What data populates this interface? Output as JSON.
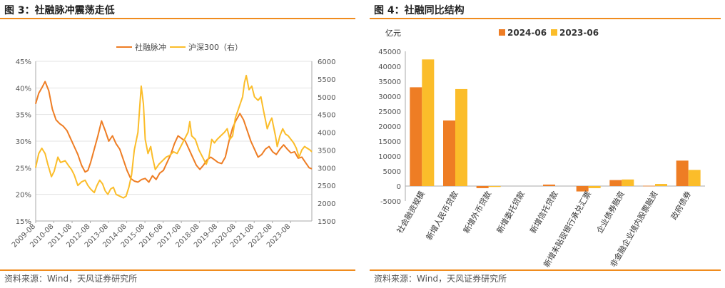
{
  "colors": {
    "accent": "#f08c1e",
    "series_dark": "#ee7d24",
    "series_light": "#fbbd2a",
    "grid": "#e3e3e3",
    "axis": "#aaaaaa"
  },
  "left": {
    "title": "图 3：社融脉冲震荡走低",
    "source": "资料来源：Wind，天风证券研究所"
  },
  "right": {
    "title": "图 4：社融同比结构",
    "source": "资料来源：Wind，天风证券研究所"
  },
  "chart_data": [
    {
      "type": "line",
      "title": "社融脉冲震荡走低",
      "legend": [
        "社融脉冲",
        "沪深300（右）"
      ],
      "legend_position": "top",
      "y_left": {
        "ticks": [
          "15%",
          "20%",
          "25%",
          "30%",
          "35%",
          "40%",
          "45%"
        ],
        "lim": [
          15,
          45
        ]
      },
      "y_right": {
        "ticks": [
          "1500",
          "2000",
          "2500",
          "3000",
          "3500",
          "4000",
          "4500",
          "5000",
          "5500",
          "6000"
        ],
        "lim": [
          1500,
          6000
        ]
      },
      "x_ticks": [
        "2009-08",
        "2010-08",
        "2011-08",
        "2012-08",
        "2013-08",
        "2014-08",
        "2015-08",
        "2016-08",
        "2017-08",
        "2018-08",
        "2019-08",
        "2020-08",
        "2021-08",
        "2022-08",
        "2023-08"
      ],
      "x_range": [
        2009.583,
        2024.75
      ],
      "series": [
        {
          "name": "社融脉冲",
          "axis": "left",
          "points": [
            [
              2009.58,
              37.0
            ],
            [
              2009.75,
              39.0
            ],
            [
              2009.92,
              40.0
            ],
            [
              2010.1,
              41.2
            ],
            [
              2010.3,
              39.5
            ],
            [
              2010.5,
              36.0
            ],
            [
              2010.7,
              34.0
            ],
            [
              2010.9,
              33.3
            ],
            [
              2011.1,
              32.8
            ],
            [
              2011.3,
              32.0
            ],
            [
              2011.5,
              30.5
            ],
            [
              2011.7,
              29.0
            ],
            [
              2011.9,
              27.5
            ],
            [
              2012.1,
              25.5
            ],
            [
              2012.3,
              24.2
            ],
            [
              2012.45,
              24.5
            ],
            [
              2012.6,
              26.0
            ],
            [
              2012.8,
              28.5
            ],
            [
              2013.0,
              31.0
            ],
            [
              2013.2,
              33.8
            ],
            [
              2013.4,
              32.0
            ],
            [
              2013.6,
              30.0
            ],
            [
              2013.8,
              31.0
            ],
            [
              2014.0,
              29.5
            ],
            [
              2014.2,
              28.5
            ],
            [
              2014.4,
              26.5
            ],
            [
              2014.6,
              24.5
            ],
            [
              2014.8,
              23.0
            ],
            [
              2015.0,
              22.5
            ],
            [
              2015.2,
              22.3
            ],
            [
              2015.4,
              22.8
            ],
            [
              2015.6,
              23.0
            ],
            [
              2015.8,
              22.3
            ],
            [
              2016.0,
              23.5
            ],
            [
              2016.2,
              22.8
            ],
            [
              2016.4,
              24.0
            ],
            [
              2016.6,
              24.5
            ],
            [
              2016.8,
              26.0
            ],
            [
              2017.0,
              27.5
            ],
            [
              2017.2,
              29.5
            ],
            [
              2017.4,
              31.0
            ],
            [
              2017.6,
              30.5
            ],
            [
              2017.8,
              30.0
            ],
            [
              2018.0,
              28.5
            ],
            [
              2018.2,
              27.0
            ],
            [
              2018.4,
              25.5
            ],
            [
              2018.6,
              24.7
            ],
            [
              2018.8,
              25.5
            ],
            [
              2019.0,
              26.5
            ],
            [
              2019.2,
              27.0
            ],
            [
              2019.4,
              26.5
            ],
            [
              2019.6,
              26.0
            ],
            [
              2019.8,
              25.8
            ],
            [
              2020.0,
              27.0
            ],
            [
              2020.2,
              30.0
            ],
            [
              2020.4,
              32.5
            ],
            [
              2020.6,
              34.0
            ],
            [
              2020.8,
              35.2
            ],
            [
              2021.0,
              34.0
            ],
            [
              2021.2,
              32.0
            ],
            [
              2021.4,
              30.0
            ],
            [
              2021.6,
              28.5
            ],
            [
              2021.8,
              27.0
            ],
            [
              2022.0,
              27.5
            ],
            [
              2022.2,
              28.5
            ],
            [
              2022.4,
              29.0
            ],
            [
              2022.6,
              28.0
            ],
            [
              2022.8,
              27.5
            ],
            [
              2023.0,
              28.5
            ],
            [
              2023.2,
              29.3
            ],
            [
              2023.4,
              28.5
            ],
            [
              2023.6,
              27.8
            ],
            [
              2023.8,
              28.0
            ],
            [
              2024.0,
              26.8
            ],
            [
              2024.2,
              27.0
            ],
            [
              2024.4,
              26.0
            ],
            [
              2024.6,
              25.0
            ],
            [
              2024.75,
              24.8
            ]
          ]
        },
        {
          "name": "沪深300（右）",
          "axis": "right",
          "points": [
            [
              2009.58,
              3000
            ],
            [
              2009.75,
              3400
            ],
            [
              2009.92,
              3550
            ],
            [
              2010.1,
              3400
            ],
            [
              2010.25,
              3100
            ],
            [
              2010.45,
              2750
            ],
            [
              2010.6,
              2900
            ],
            [
              2010.8,
              3300
            ],
            [
              2010.95,
              3150
            ],
            [
              2011.2,
              3200
            ],
            [
              2011.4,
              3050
            ],
            [
              2011.55,
              2950
            ],
            [
              2011.7,
              2800
            ],
            [
              2011.9,
              2500
            ],
            [
              2012.1,
              2600
            ],
            [
              2012.3,
              2650
            ],
            [
              2012.45,
              2500
            ],
            [
              2012.6,
              2400
            ],
            [
              2012.8,
              2300
            ],
            [
              2012.95,
              2500
            ],
            [
              2013.1,
              2650
            ],
            [
              2013.25,
              2550
            ],
            [
              2013.4,
              2350
            ],
            [
              2013.55,
              2250
            ],
            [
              2013.7,
              2400
            ],
            [
              2013.85,
              2450
            ],
            [
              2014.0,
              2250
            ],
            [
              2014.2,
              2200
            ],
            [
              2014.4,
              2150
            ],
            [
              2014.55,
              2200
            ],
            [
              2014.7,
              2450
            ],
            [
              2014.85,
              2800
            ],
            [
              2015.0,
              3500
            ],
            [
              2015.2,
              4000
            ],
            [
              2015.38,
              5300
            ],
            [
              2015.5,
              4800
            ],
            [
              2015.6,
              3800
            ],
            [
              2015.75,
              3400
            ],
            [
              2015.9,
              3600
            ],
            [
              2016.0,
              3300
            ],
            [
              2016.15,
              2950
            ],
            [
              2016.35,
              3100
            ],
            [
              2016.55,
              3200
            ],
            [
              2016.75,
              3300
            ],
            [
              2016.95,
              3350
            ],
            [
              2017.15,
              3450
            ],
            [
              2017.35,
              3400
            ],
            [
              2017.55,
              3600
            ],
            [
              2017.75,
              3800
            ],
            [
              2017.95,
              4000
            ],
            [
              2018.05,
              4300
            ],
            [
              2018.15,
              3900
            ],
            [
              2018.35,
              3800
            ],
            [
              2018.55,
              3500
            ],
            [
              2018.75,
              3300
            ],
            [
              2018.95,
              3100
            ],
            [
              2019.1,
              3300
            ],
            [
              2019.25,
              3800
            ],
            [
              2019.4,
              3700
            ],
            [
              2019.55,
              3800
            ],
            [
              2019.75,
              3900
            ],
            [
              2019.95,
              4000
            ],
            [
              2020.1,
              4100
            ],
            [
              2020.25,
              3800
            ],
            [
              2020.4,
              3900
            ],
            [
              2020.55,
              4400
            ],
            [
              2020.75,
              4700
            ],
            [
              2020.95,
              5000
            ],
            [
              2021.05,
              5400
            ],
            [
              2021.15,
              5600
            ],
            [
              2021.3,
              5200
            ],
            [
              2021.45,
              5300
            ],
            [
              2021.6,
              5000
            ],
            [
              2021.8,
              4900
            ],
            [
              2021.95,
              5000
            ],
            [
              2022.1,
              4600
            ],
            [
              2022.3,
              4100
            ],
            [
              2022.45,
              4300
            ],
            [
              2022.55,
              4400
            ],
            [
              2022.75,
              3900
            ],
            [
              2022.85,
              3600
            ],
            [
              2023.0,
              3900
            ],
            [
              2023.15,
              4100
            ],
            [
              2023.3,
              3950
            ],
            [
              2023.45,
              3900
            ],
            [
              2023.6,
              3800
            ],
            [
              2023.75,
              3700
            ],
            [
              2023.9,
              3550
            ],
            [
              2024.05,
              3300
            ],
            [
              2024.2,
              3500
            ],
            [
              2024.35,
              3600
            ],
            [
              2024.5,
              3550
            ],
            [
              2024.65,
              3500
            ],
            [
              2024.75,
              3450
            ]
          ]
        }
      ]
    },
    {
      "type": "bar",
      "title": "社融同比结构",
      "ylabel": "亿元",
      "legend_position": "top",
      "ylim": [
        -5000,
        45000
      ],
      "y_ticks": [
        "-5000",
        "0",
        "5000",
        "10000",
        "15000",
        "20000",
        "25000",
        "30000",
        "35000",
        "40000",
        "45000"
      ],
      "categories": [
        "社会融资规模",
        "新增人民币贷款",
        "新增外币贷款",
        "新增委托贷款",
        "新增信托贷款",
        "新增未贴现银行承兑汇票",
        "企业债券融资",
        "非金融企业境内股票融资",
        "政府债券"
      ],
      "series": [
        {
          "name": "2024-06",
          "values": [
            33000,
            21900,
            -700,
            0,
            500,
            -1800,
            2000,
            100,
            8500
          ]
        },
        {
          "name": "2023-06",
          "values": [
            42300,
            32400,
            -300,
            0,
            0,
            -700,
            2200,
            700,
            5400
          ]
        }
      ]
    }
  ]
}
